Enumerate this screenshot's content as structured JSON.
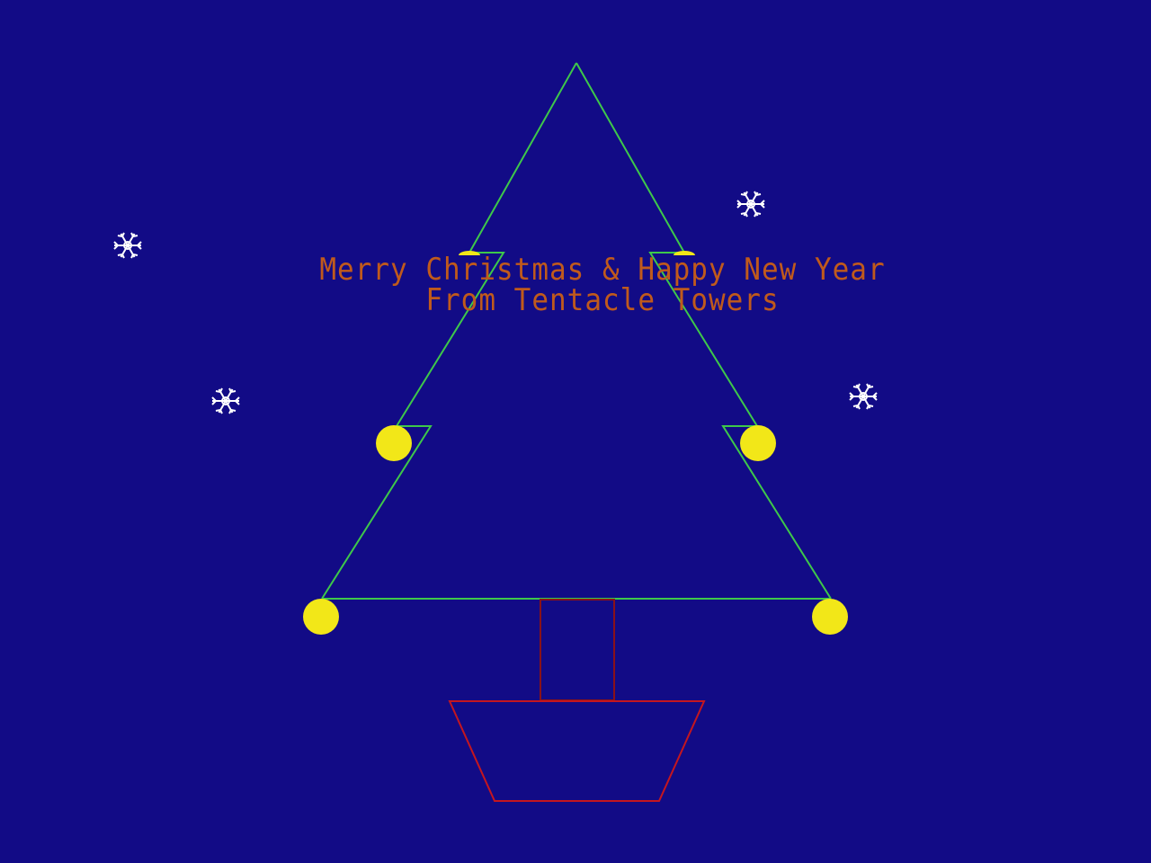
{
  "colors": {
    "background": "#120b86",
    "tree_outline": "#3ec84a",
    "ornament": "#f2e718",
    "trunk": "#8a1218",
    "pot": "#c4161f",
    "snow": "#ffffff",
    "text": "#c05a1c"
  },
  "greeting": {
    "line1": "Merry Christmas & Happy New Year",
    "line2": "From Tentacle Towers"
  },
  "icons": {
    "snowflake": "snowflake-icon",
    "ornament": "ornament-icon"
  }
}
